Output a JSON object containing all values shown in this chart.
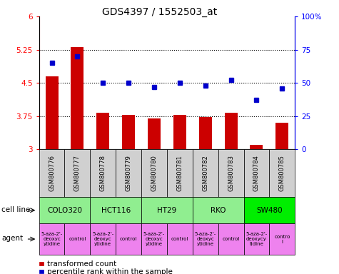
{
  "title": "GDS4397 / 1552503_at",
  "samples": [
    "GSM800776",
    "GSM800777",
    "GSM800778",
    "GSM800779",
    "GSM800780",
    "GSM800781",
    "GSM800782",
    "GSM800783",
    "GSM800784",
    "GSM800785"
  ],
  "bar_values": [
    4.65,
    5.3,
    3.82,
    3.78,
    3.7,
    3.78,
    3.73,
    3.82,
    3.1,
    3.6
  ],
  "dot_values": [
    65,
    70,
    50,
    50,
    47,
    50,
    48,
    52,
    37,
    46
  ],
  "bar_color": "#cc0000",
  "dot_color": "#0000cc",
  "ylim_left": [
    3.0,
    6.0
  ],
  "ylim_right": [
    0,
    100
  ],
  "yticks_left": [
    3.0,
    3.75,
    4.5,
    5.25,
    6.0
  ],
  "yticks_right": [
    0,
    25,
    50,
    75,
    100
  ],
  "ytick_labels_left": [
    "3",
    "3.75",
    "4.5",
    "5.25",
    "6"
  ],
  "ytick_labels_right": [
    "0",
    "25",
    "50",
    "75",
    "100%"
  ],
  "hlines": [
    3.75,
    4.5,
    5.25
  ],
  "cell_line_groups": [
    {
      "label": "COLO320",
      "start": 0,
      "end": 2,
      "color": "#90ee90"
    },
    {
      "label": "HCT116",
      "start": 2,
      "end": 4,
      "color": "#90ee90"
    },
    {
      "label": "HT29",
      "start": 4,
      "end": 6,
      "color": "#90ee90"
    },
    {
      "label": "RKO",
      "start": 6,
      "end": 8,
      "color": "#90ee90"
    },
    {
      "label": "SW480",
      "start": 8,
      "end": 10,
      "color": "#00ee00"
    }
  ],
  "agent_groups": [
    {
      "label": "5-aza-2'-\ndeoxyc\nytidine",
      "start": 0,
      "end": 1
    },
    {
      "label": "control",
      "start": 1,
      "end": 2
    },
    {
      "label": "5-aza-2'-\ndeoxyc\nytidine",
      "start": 2,
      "end": 3
    },
    {
      "label": "control",
      "start": 3,
      "end": 4
    },
    {
      "label": "5-aza-2'-\ndeoxyc\nytidine",
      "start": 4,
      "end": 5
    },
    {
      "label": "control",
      "start": 5,
      "end": 6
    },
    {
      "label": "5-aza-2'-\ndeoxyc\nytidine",
      "start": 6,
      "end": 7
    },
    {
      "label": "control",
      "start": 7,
      "end": 8
    },
    {
      "label": "5-aza-2'-\ndeoxycy\ntidine",
      "start": 8,
      "end": 9
    },
    {
      "label": "contro\nl",
      "start": 9,
      "end": 10
    }
  ],
  "cell_line_row_label": "cell line",
  "agent_row_label": "agent",
  "legend_bar_label": "transformed count",
  "legend_dot_label": "percentile rank within the sample",
  "bar_bottom": 3.0,
  "sample_box_color": "#d0d0d0",
  "agent_box_color": "#ee82ee",
  "title_fontsize": 10,
  "tick_fontsize": 7.5,
  "sample_fontsize": 6,
  "cell_fontsize": 7.5,
  "agent_fontsize": 5,
  "label_fontsize": 7.5,
  "legend_fontsize": 7.5
}
